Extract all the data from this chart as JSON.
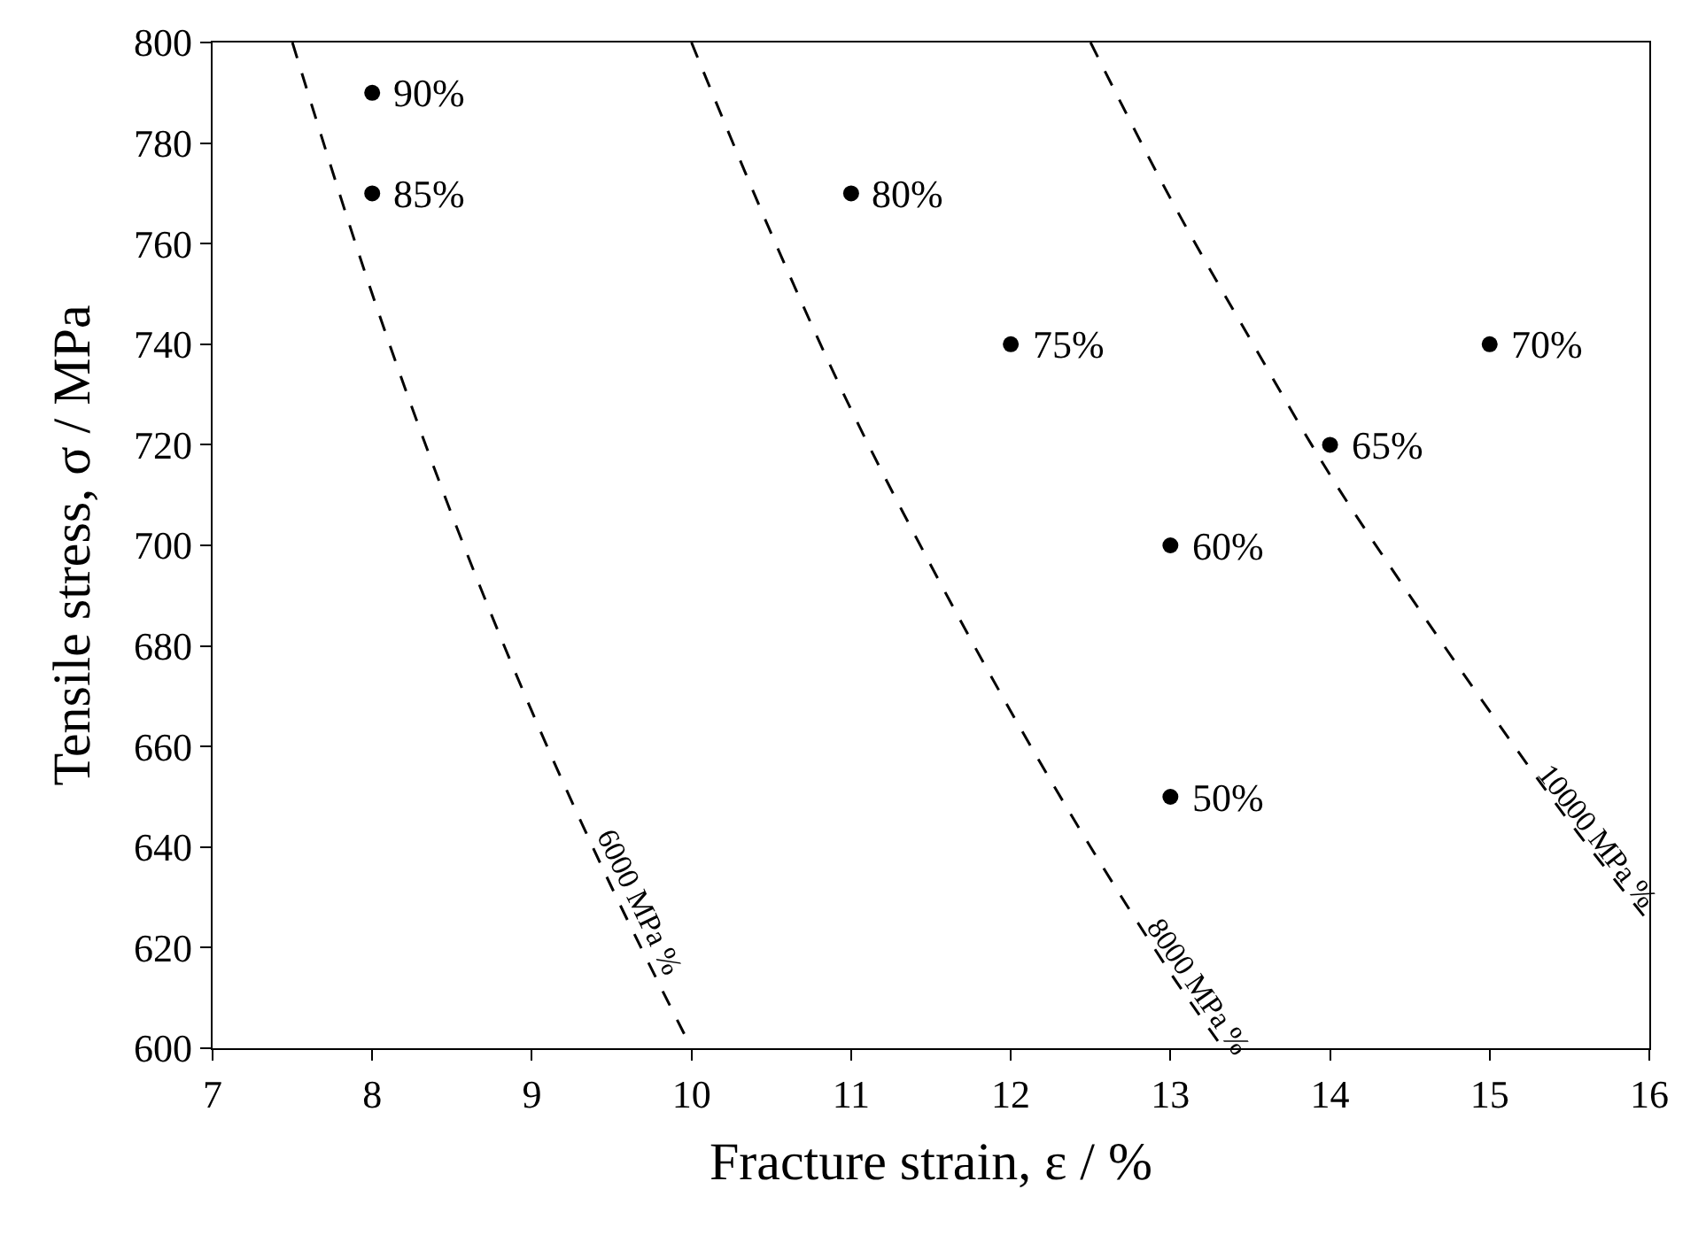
{
  "chart_data": {
    "type": "scatter",
    "xlabel": "Fracture strain, ε / %",
    "ylabel": "Tensile stress, σ / MPa",
    "xlim": [
      7,
      16
    ],
    "xticks": [
      7,
      8,
      9,
      10,
      11,
      12,
      13,
      14,
      15,
      16
    ],
    "ylim": [
      600,
      800
    ],
    "yticks": [
      600,
      620,
      640,
      660,
      680,
      700,
      720,
      740,
      760,
      780,
      800
    ],
    "legend": false,
    "marker": "circle",
    "series": [
      {
        "color": "#000000",
        "x": [
          8,
          8,
          11,
          12,
          15,
          14,
          13,
          13
        ],
        "values": [
          790,
          770,
          770,
          740,
          740,
          720,
          700,
          650
        ]
      },
      {
        "type": "line",
        "name": "6000 MPa %",
        "color": "#000000",
        "line_style": "dashed",
        "marker": "none",
        "x": [
          7.5,
          8,
          8.5,
          9,
          9.5,
          10
        ],
        "values": [
          800,
          750,
          706,
          667,
          632,
          600
        ]
      },
      {
        "type": "line",
        "name": "8000 MPa %",
        "color": "#000000",
        "line_style": "dashed",
        "marker": "none",
        "x": [
          10,
          10.5,
          11,
          11.5,
          12,
          12.5,
          13,
          13.33
        ],
        "values": [
          800,
          762,
          727,
          696,
          667,
          640,
          615,
          600
        ]
      },
      {
        "type": "line",
        "name": "10000 MPa %",
        "color": "#000000",
        "line_style": "dashed",
        "marker": "none",
        "x": [
          12.5,
          13,
          13.5,
          14,
          14.5,
          15,
          15.5,
          16
        ],
        "values": [
          800,
          769,
          741,
          714,
          690,
          667,
          645,
          625
        ]
      }
    ],
    "annotations": [
      {
        "text": "90%",
        "x": 8,
        "y": 790
      },
      {
        "text": "85%",
        "x": 8,
        "y": 770
      },
      {
        "text": "80%",
        "x": 11,
        "y": 770
      },
      {
        "text": "75%",
        "x": 12,
        "y": 740
      },
      {
        "text": "70%",
        "x": 15,
        "y": 740
      },
      {
        "text": "65%",
        "x": 14,
        "y": 720
      },
      {
        "text": "60%",
        "x": 13,
        "y": 700
      },
      {
        "text": "50%",
        "x": 13,
        "y": 650
      }
    ]
  }
}
